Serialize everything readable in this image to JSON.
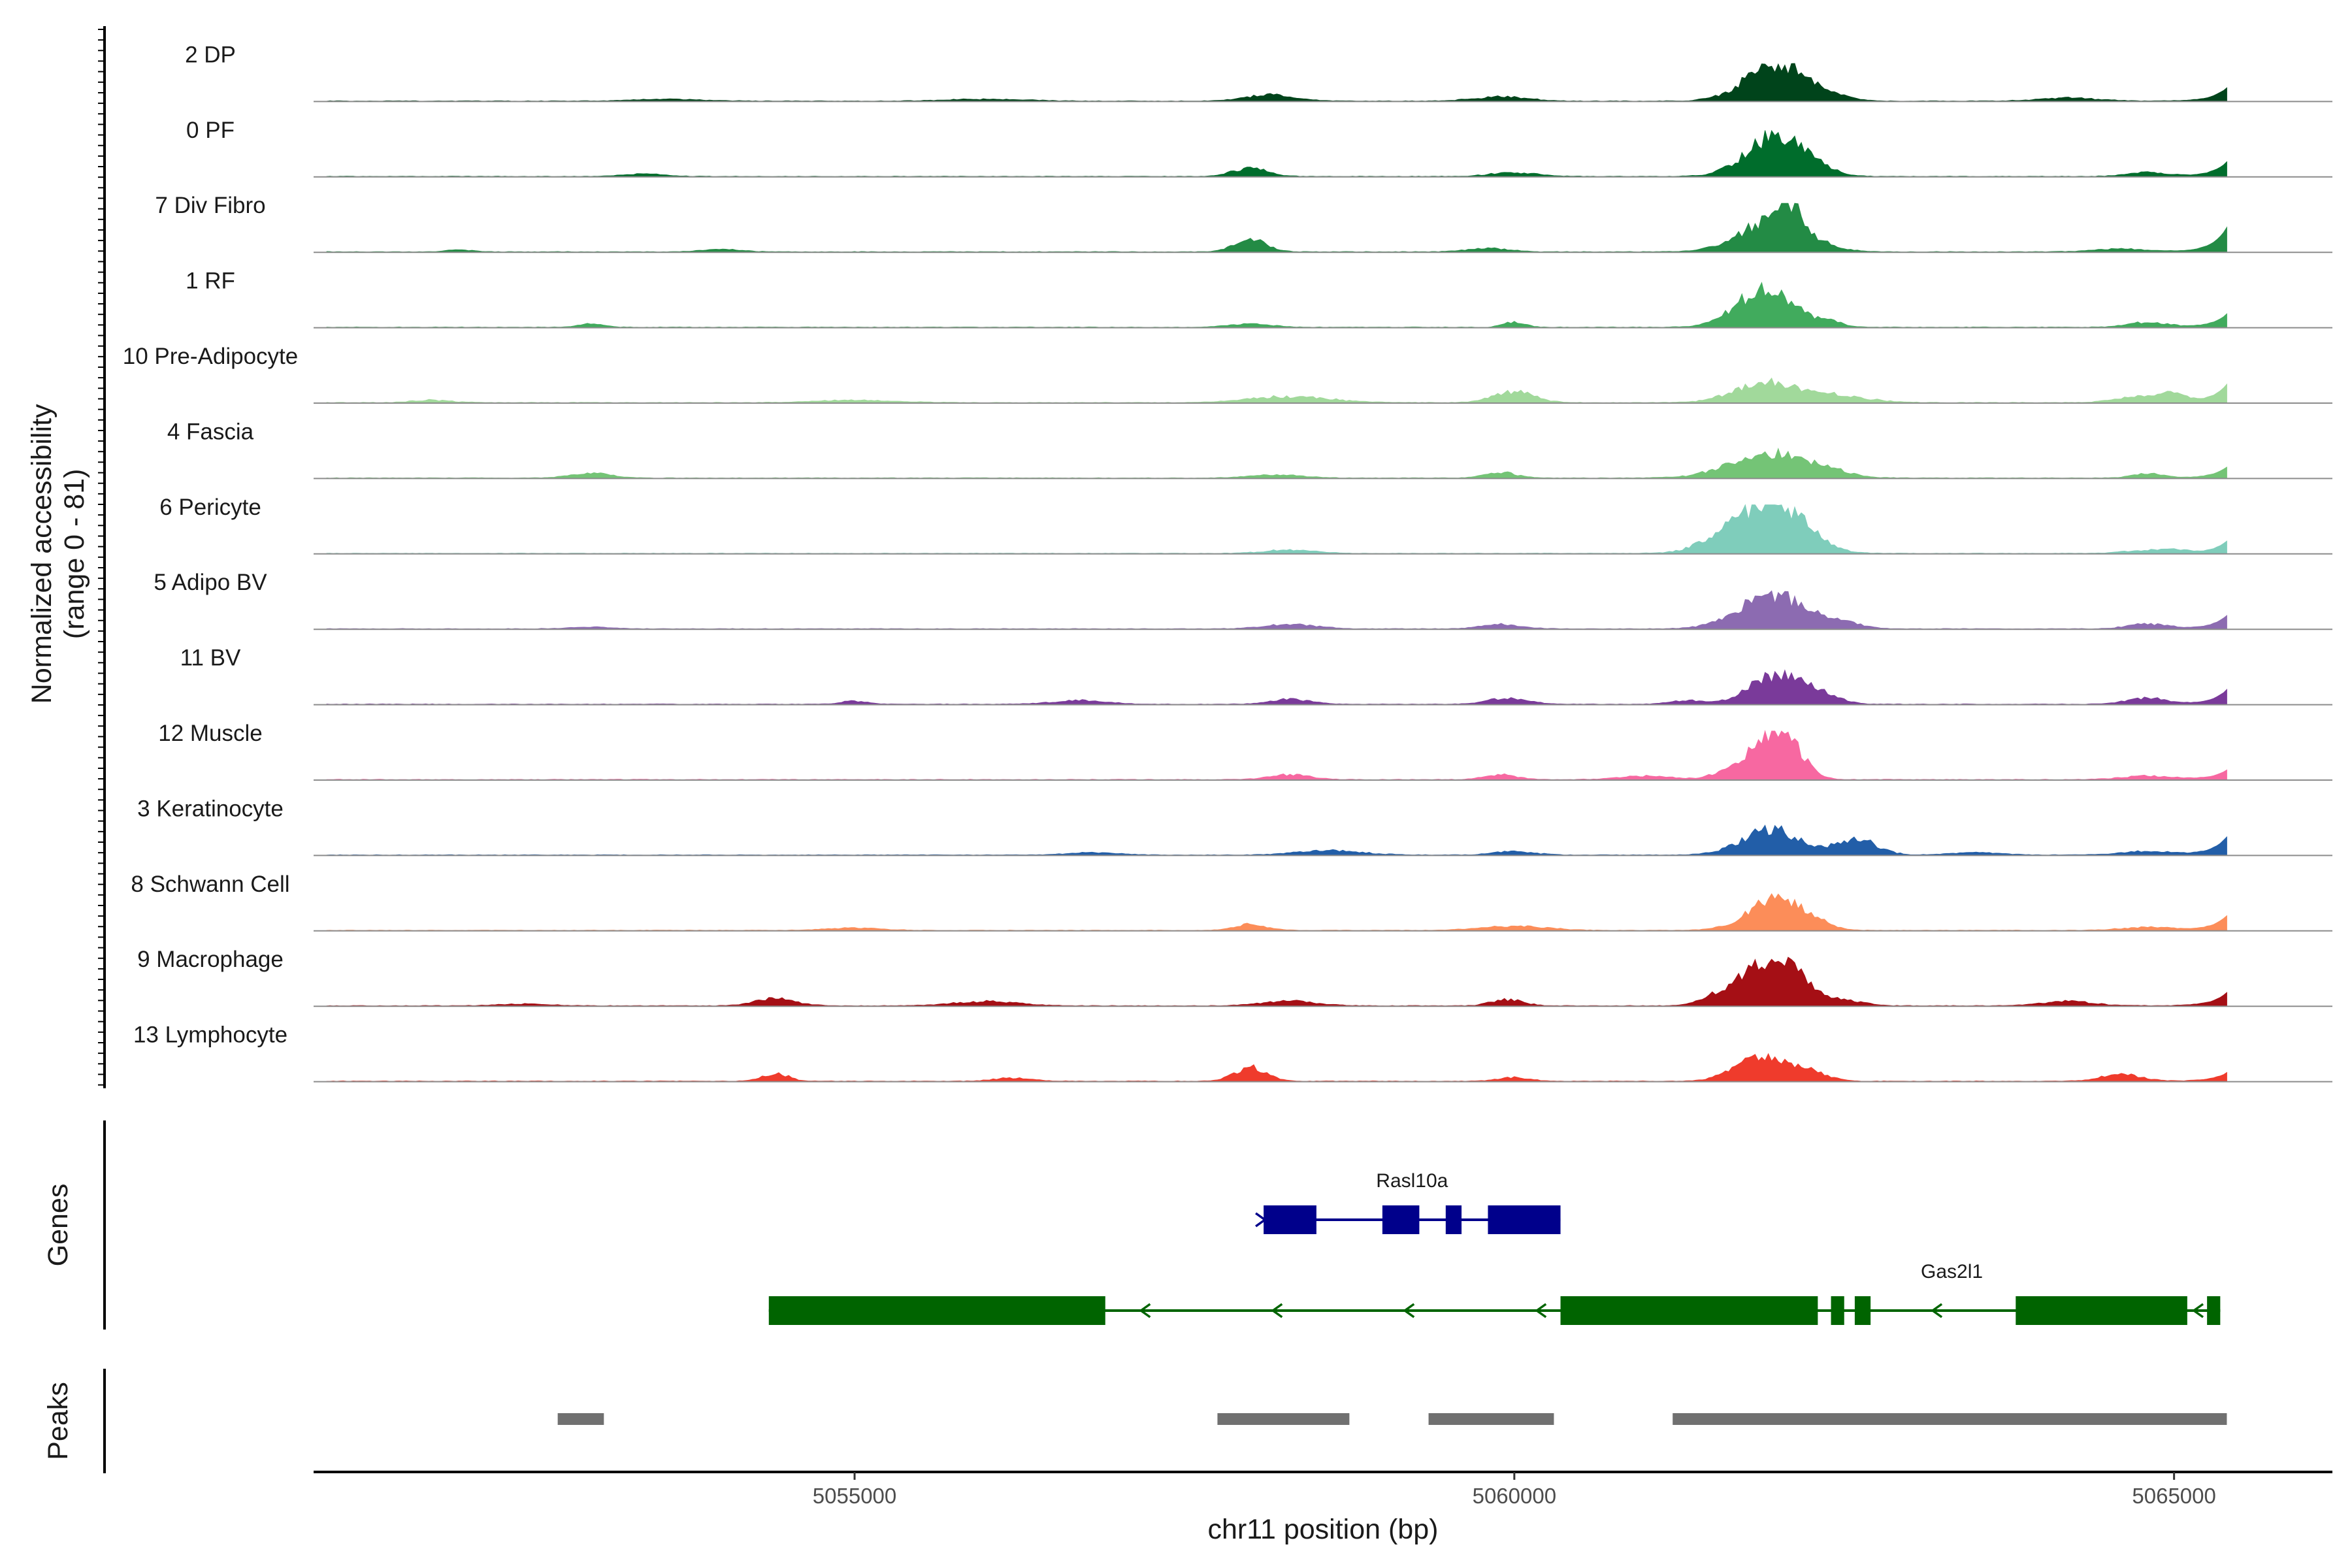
{
  "chart_data": {
    "type": "area",
    "layout": "stacked coverage tracks with gene and peak annotation tracks",
    "ylabel": "Normalized accessibility",
    "ylabel_range": "(range 0 - 81)",
    "xlabel": "chr11 position (bp)",
    "xlim": [
      5050900,
      5066200
    ],
    "ylim": [
      0,
      81
    ],
    "x_ticks": [
      5055000,
      5060000,
      5065000
    ],
    "x_tick_labels": [
      "5055000",
      "5060000",
      "5065000"
    ],
    "coverage_range": [
      5051000,
      5065400
    ],
    "grid": false,
    "legend": "none",
    "tracks": [
      {
        "name": "2 DP",
        "color": "#00441b",
        "end_height": 22,
        "peaks": [
          [
            5061990,
            62,
            230
          ],
          [
            5058150,
            10,
            180
          ],
          [
            5059900,
            7,
            200
          ],
          [
            5053600,
            3,
            250
          ],
          [
            5056000,
            3,
            300
          ],
          [
            5064200,
            5,
            220
          ],
          [
            5062500,
            4,
            100
          ]
        ]
      },
      {
        "name": "0 PF",
        "color": "#006d2c",
        "end_height": 24,
        "peaks": [
          [
            5061980,
            65,
            220
          ],
          [
            5058000,
            14,
            130
          ],
          [
            5053400,
            4,
            150
          ],
          [
            5060000,
            6,
            180
          ],
          [
            5064800,
            7,
            150
          ],
          [
            5062300,
            8,
            100
          ]
        ]
      },
      {
        "name": "7 Div Fibro",
        "color": "#238b45",
        "end_height": 40,
        "peaks": [
          [
            5061970,
            52,
            250
          ],
          [
            5062070,
            42,
            90
          ],
          [
            5058000,
            20,
            120
          ],
          [
            5054000,
            4,
            150
          ],
          [
            5059800,
            6,
            150
          ],
          [
            5064600,
            5,
            200
          ],
          [
            5052000,
            3,
            100
          ]
        ]
      },
      {
        "name": "1 RF",
        "color": "#41ab5d",
        "end_height": 22,
        "peaks": [
          [
            5061900,
            60,
            220
          ],
          [
            5058000,
            6,
            150
          ],
          [
            5053000,
            5,
            100
          ],
          [
            5060000,
            8,
            80
          ],
          [
            5064800,
            8,
            150
          ],
          [
            5062400,
            8,
            80
          ]
        ]
      },
      {
        "name": "10 Pre-Adipocyte",
        "color": "#a1d99b",
        "end_height": 30,
        "peaks": [
          [
            5061900,
            32,
            230
          ],
          [
            5062400,
            12,
            250
          ],
          [
            5060000,
            18,
            150
          ],
          [
            5058300,
            10,
            300
          ],
          [
            5064800,
            11,
            200
          ],
          [
            5055000,
            4,
            300
          ],
          [
            5051800,
            4,
            150
          ],
          [
            5065000,
            10,
            80
          ]
        ]
      },
      {
        "name": "4 Fascia",
        "color": "#74c476",
        "end_height": 18,
        "peaks": [
          [
            5061950,
            40,
            300
          ],
          [
            5053000,
            8,
            150
          ],
          [
            5059900,
            9,
            120
          ],
          [
            5058200,
            5,
            200
          ],
          [
            5064800,
            7,
            120
          ],
          [
            5062400,
            6,
            120
          ]
        ]
      },
      {
        "name": "6 Pericyte",
        "color": "#7fcdbb",
        "end_height": 20,
        "peaks": [
          [
            5061800,
            62,
            250
          ],
          [
            5062100,
            40,
            200
          ],
          [
            5058300,
            6,
            180
          ],
          [
            5064800,
            5,
            180
          ],
          [
            5065000,
            4,
            100
          ]
        ]
      },
      {
        "name": "5 Adipo BV",
        "color": "#8c6bb1",
        "end_height": 22,
        "peaks": [
          [
            5061950,
            55,
            250
          ],
          [
            5062450,
            10,
            150
          ],
          [
            5058300,
            7,
            200
          ],
          [
            5059900,
            7,
            150
          ],
          [
            5064800,
            8,
            150
          ],
          [
            5053000,
            3,
            150
          ]
        ]
      },
      {
        "name": "11 BV",
        "color": "#7a3a9a",
        "end_height": 24,
        "peaks": [
          [
            5061980,
            46,
            200
          ],
          [
            5062300,
            14,
            150
          ],
          [
            5058300,
            8,
            150
          ],
          [
            5059950,
            10,
            150
          ],
          [
            5061300,
            6,
            120
          ],
          [
            5064800,
            10,
            150
          ],
          [
            5056700,
            6,
            200
          ],
          [
            5055000,
            5,
            100
          ]
        ]
      },
      {
        "name": "12 Muscle",
        "color": "#f768a1",
        "end_height": 16,
        "peaks": [
          [
            5061900,
            58,
            150
          ],
          [
            5062080,
            45,
            130
          ],
          [
            5061580,
            10,
            100
          ],
          [
            5058300,
            8,
            150
          ],
          [
            5059900,
            8,
            120
          ],
          [
            5064800,
            6,
            200
          ],
          [
            5061000,
            6,
            200
          ]
        ]
      },
      {
        "name": "3 Keratinocyte",
        "color": "#225ea8",
        "end_height": 30,
        "peaks": [
          [
            5061950,
            42,
            220
          ],
          [
            5062600,
            25,
            150
          ],
          [
            5058600,
            7,
            250
          ],
          [
            5060000,
            6,
            150
          ],
          [
            5056800,
            4,
            200
          ],
          [
            5064800,
            6,
            200
          ],
          [
            5063500,
            4,
            200
          ]
        ]
      },
      {
        "name": "8 Schwann Cell",
        "color": "#fc8d59",
        "end_height": 24,
        "peaks": [
          [
            5061950,
            45,
            200
          ],
          [
            5062200,
            15,
            150
          ],
          [
            5058000,
            10,
            120
          ],
          [
            5060000,
            7,
            250
          ],
          [
            5064800,
            5,
            200
          ],
          [
            5055000,
            4,
            200
          ]
        ]
      },
      {
        "name": "9 Macrophage",
        "color": "#a50f15",
        "end_height": 22,
        "peaks": [
          [
            5062050,
            70,
            170
          ],
          [
            5061600,
            22,
            150
          ],
          [
            5061800,
            30,
            120
          ],
          [
            5054400,
            12,
            150
          ],
          [
            5056000,
            7,
            250
          ],
          [
            5058300,
            8,
            200
          ],
          [
            5059950,
            10,
            120
          ],
          [
            5062500,
            8,
            150
          ],
          [
            5064200,
            7,
            200
          ],
          [
            5052500,
            3,
            200
          ]
        ]
      },
      {
        "name": "13 Lymphocyte",
        "color": "#ef3b2c",
        "end_height": 14,
        "peaks": [
          [
            5061850,
            40,
            180
          ],
          [
            5062200,
            18,
            150
          ],
          [
            5058000,
            22,
            120
          ],
          [
            5054400,
            12,
            100
          ],
          [
            5056200,
            5,
            150
          ],
          [
            5060000,
            6,
            120
          ],
          [
            5064600,
            11,
            150
          ]
        ]
      }
    ],
    "genes_track": {
      "label": "Genes",
      "genes": [
        {
          "name": "Rasl10a",
          "color": "#00008b",
          "strand": "+",
          "start": 5058100,
          "end": 5060350,
          "exons": [
            [
              5058100,
              5058500
            ],
            [
              5059000,
              5059280
            ],
            [
              5059480,
              5059600
            ],
            [
              5059800,
              5060350
            ]
          ],
          "arrows": [
            5058080
          ]
        },
        {
          "name": "Gas2l1",
          "color": "#006400",
          "strand": "-",
          "start": 5054350,
          "end": 5065350,
          "exons": [
            [
              5054350,
              5056900
            ],
            [
              5060350,
              5062300
            ],
            [
              5062400,
              5062500
            ],
            [
              5062580,
              5062700
            ],
            [
              5063800,
              5065100
            ],
            [
              5065250,
              5065350
            ]
          ],
          "arrows": [
            5057200,
            5058200,
            5059200,
            5060200,
            5063200,
            5065180
          ]
        }
      ]
    },
    "peaks_track": {
      "label": "Peaks",
      "color": "#707070",
      "intervals": [
        [
          5052750,
          5053100
        ],
        [
          5057750,
          5058750
        ],
        [
          5059350,
          5060300
        ],
        [
          5061200,
          5065400
        ]
      ]
    }
  }
}
